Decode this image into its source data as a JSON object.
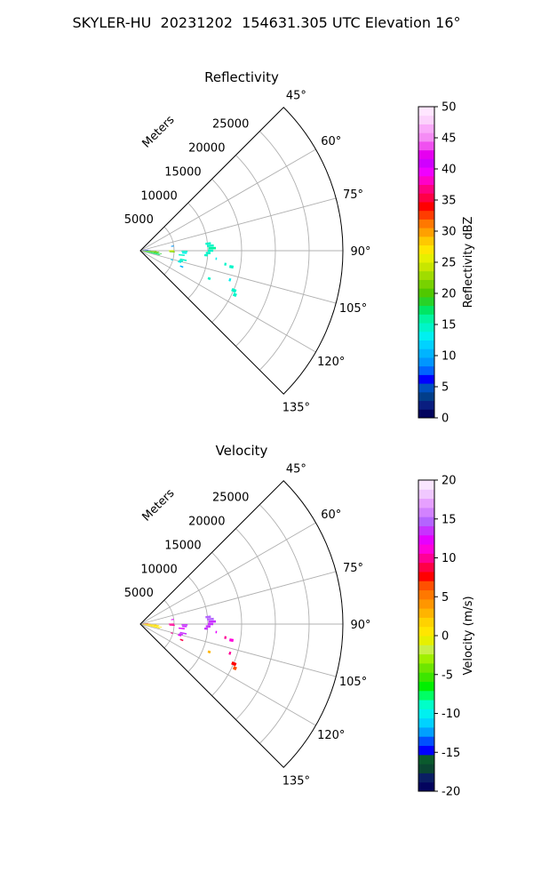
{
  "suptitle": "SKYLER-HU  20231202  154631.305 UTC Elevation 16°",
  "chart_data": [
    {
      "type": "heatmap",
      "title": "Reflectivity",
      "projection": "polar",
      "range_label": "Meters",
      "range_ticks": [
        5000,
        10000,
        15000,
        20000,
        25000
      ],
      "range_max": 30000,
      "azimuth_range": [
        45,
        135
      ],
      "azimuth_ticks": [
        "45°",
        "60°",
        "75°",
        "90°",
        "105°",
        "120°",
        "135°"
      ],
      "grid": true,
      "colorbar": {
        "label": "Reflectivity dBZ",
        "min": 0,
        "max": 50,
        "ticks": [
          0,
          5,
          10,
          15,
          20,
          25,
          30,
          35,
          40,
          45,
          50
        ],
        "colors": [
          "#03045e",
          "#0a1e80",
          "#023e8a",
          "#0050c0",
          "#0000ff",
          "#0064ff",
          "#0096ff",
          "#00b4ff",
          "#00d2ff",
          "#00f0f0",
          "#00f5c8",
          "#00f5a0",
          "#00e664",
          "#28d228",
          "#50c800",
          "#78d200",
          "#a0dc00",
          "#c8e600",
          "#e6f000",
          "#ffe600",
          "#ffc800",
          "#ffa000",
          "#ff7800",
          "#ff3c00",
          "#ff0000",
          "#ff0046",
          "#ff0082",
          "#ff00c8",
          "#f000ff",
          "#d000ff",
          "#e600f0",
          "#f050f0",
          "#f58cf5",
          "#faaafa",
          "#fcd2fc",
          "#ffe6ff"
        ]
      },
      "echoes": [
        {
          "az": 92,
          "r0": 200,
          "r1": 2400,
          "value": 22
        },
        {
          "az": 94,
          "r0": 300,
          "r1": 2800,
          "value": 20
        },
        {
          "az": 96,
          "r0": 400,
          "r1": 2600,
          "value": 21
        },
        {
          "az": 98,
          "r0": 500,
          "r1": 3200,
          "value": 19
        },
        {
          "az": 100,
          "r0": 600,
          "r1": 2800,
          "value": 18
        },
        {
          "az": 102,
          "r0": 800,
          "r1": 3000,
          "value": 17
        },
        {
          "az": 88,
          "r0": 300,
          "r1": 1500,
          "value": 8
        },
        {
          "az": 84,
          "r0": 400,
          "r1": 1200,
          "value": 6
        },
        {
          "az": 90,
          "r0": 4200,
          "r1": 5000,
          "value": 24
        },
        {
          "az": 92,
          "r0": 4300,
          "r1": 5100,
          "value": 22
        },
        {
          "az": 82,
          "r0": 4600,
          "r1": 5000,
          "value": 9
        },
        {
          "az": 91,
          "r0": 6100,
          "r1": 7000,
          "value": 14
        },
        {
          "az": 93,
          "r0": 6200,
          "r1": 6900,
          "value": 13
        },
        {
          "az": 96,
          "r0": 5700,
          "r1": 6600,
          "value": 15
        },
        {
          "az": 102,
          "r0": 6000,
          "r1": 7000,
          "value": 14
        },
        {
          "az": 104,
          "r0": 5900,
          "r1": 6500,
          "value": 15
        },
        {
          "az": 106,
          "r0": 5800,
          "r1": 6300,
          "value": 13
        },
        {
          "az": 84,
          "r0": 9700,
          "r1": 10500,
          "value": 15
        },
        {
          "az": 86,
          "r0": 9900,
          "r1": 10900,
          "value": 15
        },
        {
          "az": 88,
          "r0": 10100,
          "r1": 11200,
          "value": 16
        },
        {
          "az": 90,
          "r0": 10000,
          "r1": 10800,
          "value": 14
        },
        {
          "az": 92,
          "r0": 9700,
          "r1": 10400,
          "value": 15
        },
        {
          "az": 94,
          "r0": 9500,
          "r1": 10000,
          "value": 14
        },
        {
          "az": 96,
          "r0": 11200,
          "r1": 11400,
          "value": 13
        },
        {
          "az": 99,
          "r0": 12600,
          "r1": 12900,
          "value": 14
        },
        {
          "az": 100,
          "r0": 13400,
          "r1": 14000,
          "value": 14
        },
        {
          "az": 108,
          "r0": 13800,
          "r1": 14100,
          "value": 13
        },
        {
          "az": 112,
          "r0": 10800,
          "r1": 11200,
          "value": 14
        },
        {
          "az": 111,
          "r0": 6300,
          "r1": 6800,
          "value": 11
        },
        {
          "az": 106,
          "r0": 4700,
          "r1": 5000,
          "value": 12
        },
        {
          "az": 113,
          "r0": 14700,
          "r1": 15400,
          "value": 14
        },
        {
          "az": 115,
          "r0": 15200,
          "r1": 15700,
          "value": 14
        }
      ]
    },
    {
      "type": "heatmap",
      "title": "Velocity",
      "projection": "polar",
      "range_label": "Meters",
      "range_ticks": [
        5000,
        10000,
        15000,
        20000,
        25000
      ],
      "range_max": 30000,
      "azimuth_range": [
        45,
        135
      ],
      "azimuth_ticks": [
        "45°",
        "60°",
        "75°",
        "90°",
        "105°",
        "120°",
        "135°"
      ],
      "grid": true,
      "colorbar": {
        "label": "Velocity (m/s)",
        "min": -20,
        "max": 20,
        "ticks": [
          -20,
          -15,
          -10,
          -5,
          0,
          5,
          10,
          15,
          20
        ],
        "colors": [
          "#03045e",
          "#0a1e64",
          "#0a4632",
          "#0a5a2d",
          "#0000ff",
          "#0050ff",
          "#00a0ff",
          "#00d2ff",
          "#00f0f0",
          "#00ffc8",
          "#00ff64",
          "#00f000",
          "#3ce600",
          "#6ee600",
          "#a0f000",
          "#c8f046",
          "#e6f000",
          "#ffe600",
          "#ffd200",
          "#ffb400",
          "#ff9600",
          "#ff7800",
          "#ff5000",
          "#ff0000",
          "#ff0046",
          "#ff0096",
          "#ff00dc",
          "#e600ff",
          "#c832ff",
          "#b464ff",
          "#d282ff",
          "#e6a0ff",
          "#f0c8ff",
          "#fae6ff"
        ]
      },
      "echoes": [
        {
          "az": 92,
          "r0": 200,
          "r1": 2400,
          "value": 2
        },
        {
          "az": 94,
          "r0": 300,
          "r1": 2800,
          "value": 1
        },
        {
          "az": 96,
          "r0": 400,
          "r1": 2600,
          "value": 2
        },
        {
          "az": 98,
          "r0": 500,
          "r1": 3200,
          "value": 1
        },
        {
          "az": 100,
          "r0": 600,
          "r1": 2800,
          "value": 0
        },
        {
          "az": 102,
          "r0": 800,
          "r1": 3000,
          "value": 1
        },
        {
          "az": 88,
          "r0": 300,
          "r1": 1500,
          "value": 5
        },
        {
          "az": 84,
          "r0": 400,
          "r1": 1200,
          "value": 6
        },
        {
          "az": 90,
          "r0": 4200,
          "r1": 5000,
          "value": 10
        },
        {
          "az": 92,
          "r0": 4300,
          "r1": 5100,
          "value": 10
        },
        {
          "az": 82,
          "r0": 4600,
          "r1": 5000,
          "value": 12
        },
        {
          "az": 91,
          "r0": 6100,
          "r1": 7000,
          "value": 13
        },
        {
          "az": 93,
          "r0": 6200,
          "r1": 6900,
          "value": 13
        },
        {
          "az": 96,
          "r0": 5700,
          "r1": 6600,
          "value": 12
        },
        {
          "az": 102,
          "r0": 6000,
          "r1": 7000,
          "value": 13
        },
        {
          "az": 104,
          "r0": 5900,
          "r1": 6500,
          "value": 13
        },
        {
          "az": 106,
          "r0": 5800,
          "r1": 6300,
          "value": 12
        },
        {
          "az": 84,
          "r0": 9700,
          "r1": 10500,
          "value": 15
        },
        {
          "az": 86,
          "r0": 9900,
          "r1": 10900,
          "value": 15
        },
        {
          "az": 88,
          "r0": 10100,
          "r1": 11200,
          "value": 14
        },
        {
          "az": 90,
          "r0": 10000,
          "r1": 10800,
          "value": 13
        },
        {
          "az": 92,
          "r0": 9700,
          "r1": 10400,
          "value": 13
        },
        {
          "az": 94,
          "r0": 9500,
          "r1": 10000,
          "value": 13
        },
        {
          "az": 96,
          "r0": 11200,
          "r1": 11400,
          "value": 12
        },
        {
          "az": 99,
          "r0": 12600,
          "r1": 12900,
          "value": 10
        },
        {
          "az": 100,
          "r0": 13400,
          "r1": 14000,
          "value": 11
        },
        {
          "az": 108,
          "r0": 13800,
          "r1": 14100,
          "value": 10
        },
        {
          "az": 112,
          "r0": 10800,
          "r1": 11200,
          "value": 3
        },
        {
          "az": 111,
          "r0": 6300,
          "r1": 6800,
          "value": 9
        },
        {
          "az": 106,
          "r0": 4700,
          "r1": 5000,
          "value": 10
        },
        {
          "az": 113,
          "r0": 14700,
          "r1": 15400,
          "value": 8
        },
        {
          "az": 115,
          "r0": 15200,
          "r1": 15700,
          "value": 7
        }
      ]
    }
  ]
}
